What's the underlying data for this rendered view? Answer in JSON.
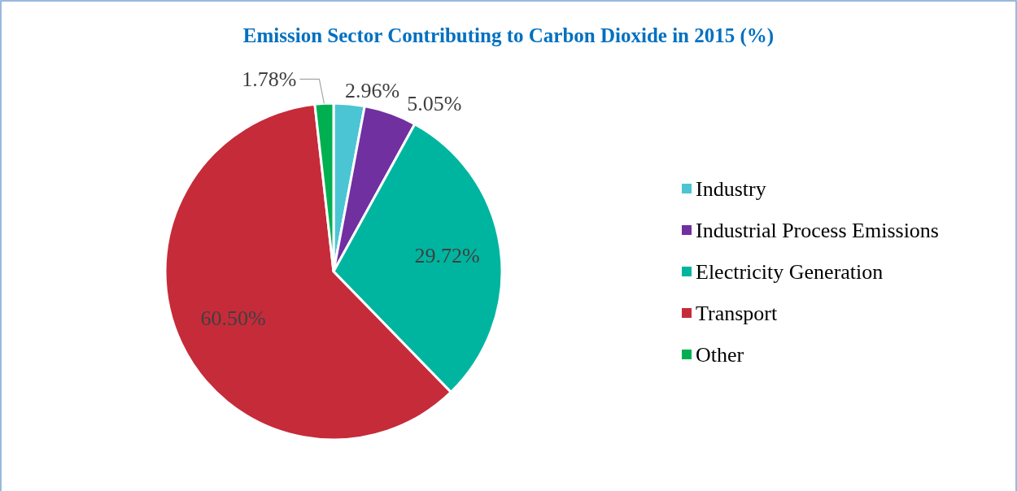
{
  "chart_data": {
    "type": "pie",
    "title": "Emission Sector Contributing to Carbon Dioxide in 2015 (%)",
    "categories": [
      "Industry",
      "Industrial Process Emissions",
      "Electricity Generation",
      "Transport",
      "Other"
    ],
    "values": [
      2.96,
      5.05,
      29.72,
      60.5,
      1.78
    ],
    "value_labels": [
      "2.96%",
      "5.05%",
      "29.72%",
      "60.50%",
      "1.78%"
    ],
    "colors": [
      "#4bc5d3",
      "#7030a0",
      "#00b5a0",
      "#c62b3a",
      "#00b050"
    ],
    "legend": "right"
  }
}
